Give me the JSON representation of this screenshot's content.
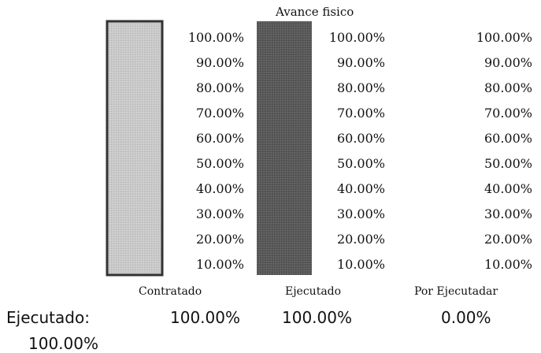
{
  "chart_data": {
    "type": "bar",
    "title": "Avance fisico",
    "categories": [
      "Contratado",
      "Ejecutado",
      "Por Ejecutadar"
    ],
    "values": [
      1.0,
      1.0,
      0.0
    ],
    "value_labels": [
      "100.00%",
      "100.00%",
      "0.00%"
    ],
    "tick_labels": [
      "100.00%",
      "90.00%",
      "80.00%",
      "70.00%",
      "60.00%",
      "50.00%",
      "40.00%",
      "30.00%",
      "20.00%",
      "10.00%"
    ],
    "ylim": [
      0,
      1
    ],
    "grid": false,
    "colors": {
      "Contratado": "#c9c9c9",
      "Ejecutado": "#5a5a5a",
      "border": "#333333"
    }
  },
  "summary": {
    "label": "Ejecutado:",
    "total": "100.00%"
  }
}
